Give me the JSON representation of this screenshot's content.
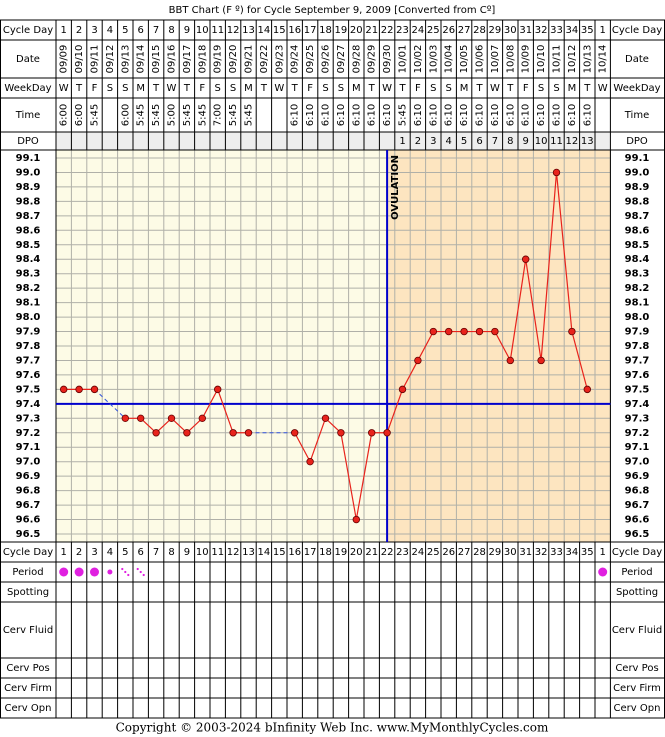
{
  "chart_data": {
    "type": "line",
    "title": "BBT Chart (F º) for Cycle September 9, 2009  [Converted from Cº]",
    "footer": "Copyright © 2003-2024 bInfinity Web Inc.     www.MyMonthlyCycles.com",
    "row_labels": {
      "cycle_day": "Cycle Day",
      "date": "Date",
      "weekday": "WeekDay",
      "time": "Time",
      "dpo": "DPO",
      "period": "Period",
      "spotting": "Spotting",
      "cerv_fluid": "Cerv Fluid",
      "cerv_pos": "Cerv Pos",
      "cerv_firm": "Cerv Firm",
      "cerv_opn": "Cerv Opn"
    },
    "categories": [
      1,
      2,
      3,
      4,
      5,
      6,
      7,
      8,
      9,
      10,
      11,
      12,
      13,
      14,
      15,
      16,
      17,
      18,
      19,
      20,
      21,
      22,
      23,
      24,
      25,
      26,
      27,
      28,
      29,
      30,
      31,
      32,
      33,
      34,
      35,
      1
    ],
    "dates": [
      "09/09",
      "09/10",
      "09/11",
      "09/12",
      "09/13",
      "09/14",
      "09/15",
      "09/16",
      "09/17",
      "09/18",
      "09/19",
      "09/20",
      "09/21",
      "09/22",
      "09/23",
      "09/24",
      "09/25",
      "09/26",
      "09/27",
      "09/28",
      "09/29",
      "09/30",
      "10/01",
      "10/02",
      "10/03",
      "10/04",
      "10/05",
      "10/06",
      "10/07",
      "10/08",
      "10/09",
      "10/10",
      "10/11",
      "10/12",
      "10/13",
      "10/14"
    ],
    "weekdays": [
      "W",
      "T",
      "F",
      "S",
      "S",
      "M",
      "T",
      "W",
      "T",
      "F",
      "S",
      "S",
      "M",
      "T",
      "W",
      "T",
      "F",
      "S",
      "S",
      "M",
      "T",
      "W",
      "T",
      "F",
      "S",
      "S",
      "M",
      "T",
      "W",
      "T",
      "F",
      "S",
      "S",
      "M",
      "T",
      "W"
    ],
    "times": [
      "6:00",
      "6:00",
      "5:45",
      null,
      "6:00",
      "5:45",
      "5:45",
      "5:00",
      "5:45",
      "5:45",
      "7:00",
      "5:45",
      "5:45",
      null,
      null,
      "6:10",
      "6:10",
      "6:10",
      "6:10",
      "6:10",
      "6:10",
      "6:10",
      "5:45",
      "6:10",
      "6:10",
      "6:10",
      "6:10",
      "6:10",
      "6:10",
      "6:10",
      "6:10",
      "6:10",
      "6:10",
      "6:10",
      "6:10",
      null
    ],
    "dpo": [
      null,
      null,
      null,
      null,
      null,
      null,
      null,
      null,
      null,
      null,
      null,
      null,
      null,
      null,
      null,
      null,
      null,
      null,
      null,
      null,
      null,
      null,
      1,
      2,
      3,
      4,
      5,
      6,
      7,
      8,
      9,
      10,
      11,
      12,
      13,
      null
    ],
    "series": [
      {
        "name": "BBT",
        "color": "#e8231c",
        "values": [
          97.5,
          97.5,
          97.5,
          null,
          97.3,
          97.3,
          97.2,
          97.3,
          97.2,
          97.3,
          97.5,
          97.2,
          97.2,
          null,
          null,
          97.2,
          97.0,
          97.3,
          97.2,
          96.6,
          97.2,
          97.2,
          97.5,
          97.7,
          97.9,
          97.9,
          97.9,
          97.9,
          97.9,
          97.7,
          98.4,
          97.7,
          99.0,
          97.9,
          97.5,
          null
        ]
      }
    ],
    "period": [
      3,
      3,
      3,
      2,
      1,
      1,
      null,
      null,
      null,
      null,
      null,
      null,
      null,
      null,
      null,
      null,
      null,
      null,
      null,
      null,
      null,
      null,
      null,
      null,
      null,
      null,
      null,
      null,
      null,
      null,
      null,
      null,
      null,
      null,
      null,
      3
    ],
    "period_color": "#e020e0",
    "coverline": 97.4,
    "coverline_color": "#0000cc",
    "ovulation_index": 21,
    "ovulation_label": "OVULATION",
    "ylim": [
      96.5,
      99.1
    ],
    "yticks": [
      96.5,
      96.6,
      96.7,
      96.8,
      96.9,
      {
        "value": 97,
        "label": "97.0"
      },
      97.1,
      97.2,
      97.3,
      97.4,
      97.5,
      97.6,
      97.7,
      97.8,
      97.9,
      {
        "value": 98,
        "label": "98.0"
      },
      98.1,
      98.2,
      98.3,
      98.4,
      98.5,
      98.6,
      98.7,
      98.8,
      98.9,
      {
        "value": 99,
        "label": "99.0"
      },
      99.1
    ],
    "grid": true
  }
}
